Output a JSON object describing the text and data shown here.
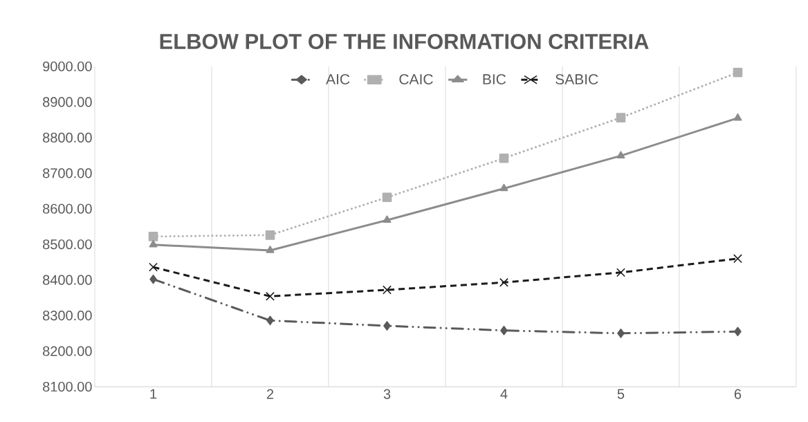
{
  "chart_data": {
    "type": "line",
    "title": "ELBOW PLOT OF THE INFORMATION CRITERIA",
    "categories": [
      "1",
      "2",
      "3",
      "4",
      "5",
      "6"
    ],
    "series": [
      {
        "name": "AIC",
        "color": "#5a5a5a",
        "marker": "diamond",
        "line_style": "dashdot",
        "values": [
          8402,
          8286,
          8271,
          8258,
          8250,
          8255
        ]
      },
      {
        "name": "CAIC",
        "color": "#b0b0b0",
        "marker": "square",
        "line_style": "dotted",
        "values": [
          8522,
          8526,
          8632,
          8742,
          8856,
          8983
        ]
      },
      {
        "name": "BIC",
        "color": "#8c8c8c",
        "marker": "triangle",
        "line_style": "solid",
        "values": [
          8499,
          8483,
          8568,
          8657,
          8749,
          8855
        ]
      },
      {
        "name": "SABIC",
        "color": "#1a1a1a",
        "marker": "cross",
        "line_style": "dashed",
        "values": [
          8436,
          8354,
          8372,
          8393,
          8421,
          8460
        ]
      }
    ],
    "ylim": [
      8100,
      9000
    ],
    "yticks": [
      {
        "value": 8100,
        "label": "8100.00"
      },
      {
        "value": 8200,
        "label": "8200.00"
      },
      {
        "value": 8300,
        "label": "8300.00"
      },
      {
        "value": 8400,
        "label": "8400.00"
      },
      {
        "value": 8500,
        "label": "8500.00"
      },
      {
        "value": 8600,
        "label": "8600.00"
      },
      {
        "value": 8700,
        "label": "8700.00"
      },
      {
        "value": 8800,
        "label": "8800.00"
      },
      {
        "value": 8900,
        "label": "8900.00"
      },
      {
        "value": 9000,
        "label": "9000.00"
      }
    ],
    "grid": "x",
    "legend": "top"
  }
}
